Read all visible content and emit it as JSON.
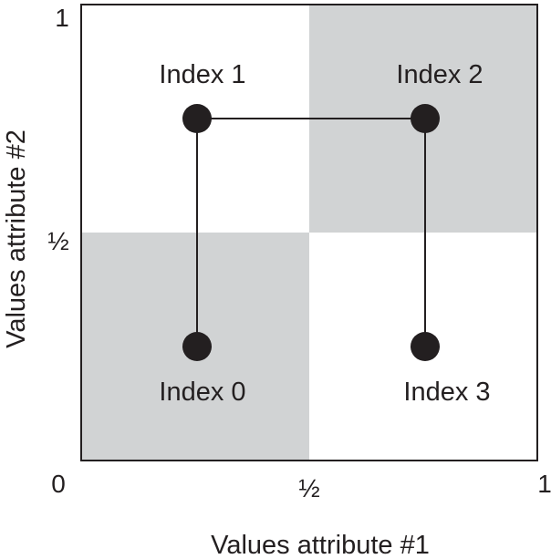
{
  "axes": {
    "x_label": "Values attribute #1",
    "y_label": "Values attribute #2",
    "x_ticks": [
      "0",
      "½",
      "1"
    ],
    "y_ticks": [
      "½",
      "1"
    ]
  },
  "quadrants": [
    {
      "name": "bottom-left",
      "shaded": true
    },
    {
      "name": "top-left",
      "shaded": false
    },
    {
      "name": "top-right",
      "shaded": true
    },
    {
      "name": "bottom-right",
      "shaded": false
    }
  ],
  "points": [
    {
      "label": "Index 0",
      "x": 0.25,
      "y": 0.25
    },
    {
      "label": "Index 1",
      "x": 0.25,
      "y": 0.75
    },
    {
      "label": "Index 2",
      "x": 0.75,
      "y": 0.75
    },
    {
      "label": "Index 3",
      "x": 0.75,
      "y": 0.25
    }
  ],
  "path_order": [
    0,
    1,
    2,
    3
  ],
  "colors": {
    "shade": "#d1d3d4",
    "ink": "#231f20",
    "background": "#ffffff"
  }
}
